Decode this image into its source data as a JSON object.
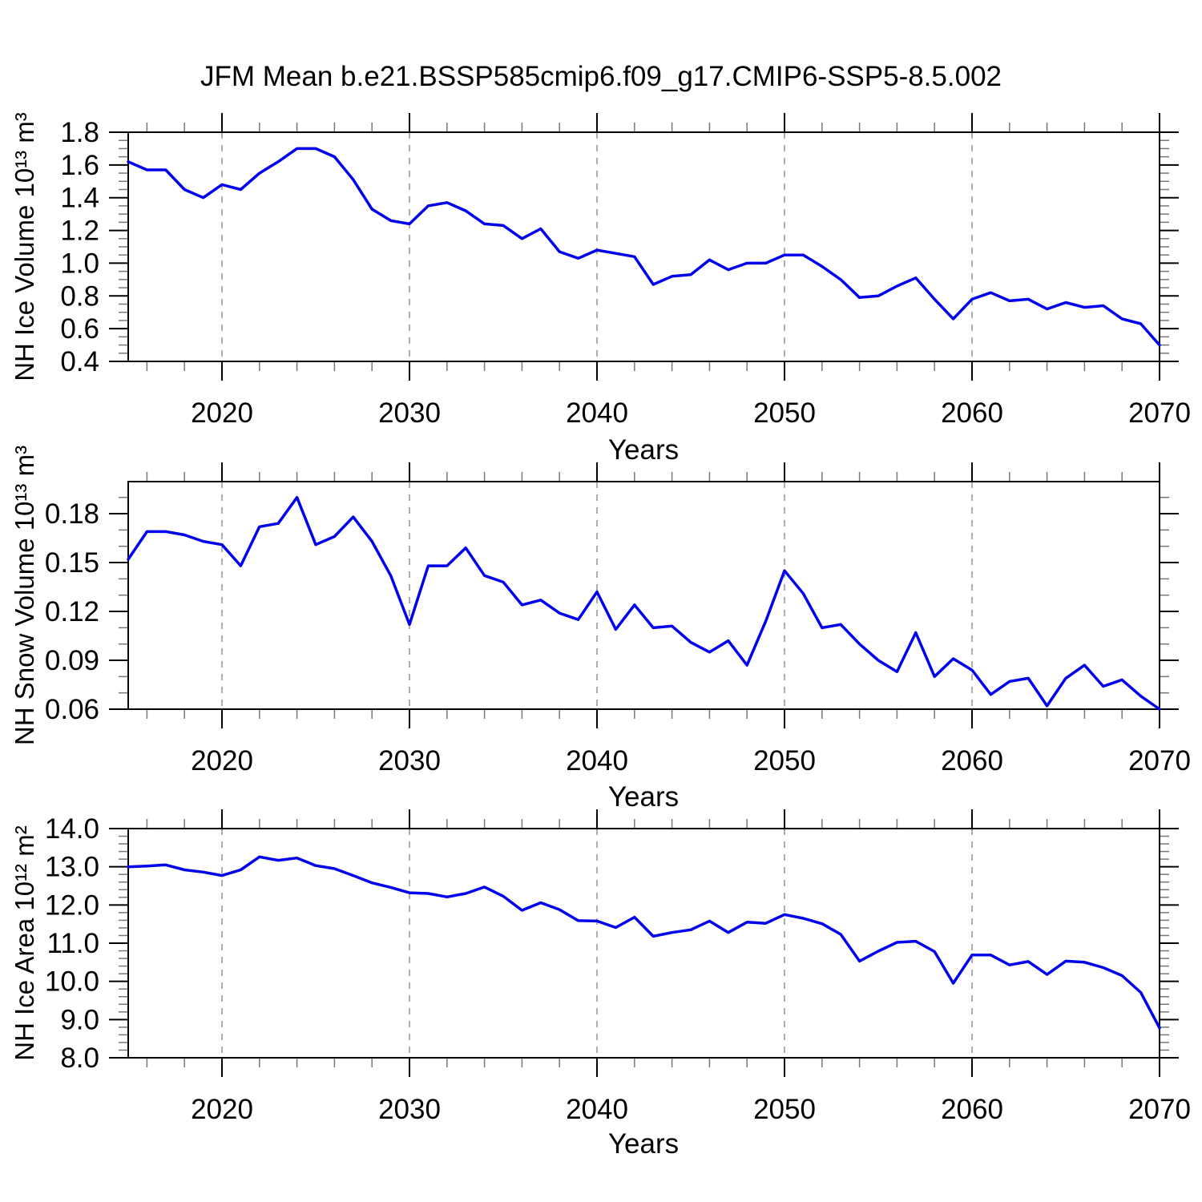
{
  "title": "JFM Mean b.e21.BSSP585cmip6.f09_g17.CMIP6-SSP5-8.5.002",
  "gridline_color": "#999999",
  "minor_tick_color": "#777777",
  "axis_color": "#000000",
  "chart_data": [
    {
      "type": "line",
      "series_name": "NH Ice Volume",
      "ylabel": "NH Ice Volume 10¹³ m³",
      "xlabel": "Years",
      "line_color": "#0000EE",
      "x_start": 2015,
      "x_step": 1,
      "values": [
        1.62,
        1.57,
        1.57,
        1.45,
        1.4,
        1.48,
        1.45,
        1.55,
        1.62,
        1.7,
        1.7,
        1.65,
        1.51,
        1.33,
        1.26,
        1.24,
        1.35,
        1.37,
        1.32,
        1.24,
        1.23,
        1.15,
        1.21,
        1.07,
        1.03,
        1.08,
        1.06,
        1.04,
        0.87,
        0.92,
        0.93,
        1.02,
        0.96,
        1.0,
        1.0,
        1.05,
        1.05,
        0.98,
        0.9,
        0.79,
        0.8,
        0.86,
        0.91,
        0.78,
        0.66,
        0.78,
        0.82,
        0.77,
        0.78,
        0.72,
        0.76,
        0.73,
        0.74,
        0.66,
        0.63,
        0.5
      ],
      "xlim": [
        2015,
        2070
      ],
      "ylim": [
        0.4,
        1.8
      ],
      "xticks": [
        2020,
        2030,
        2040,
        2050,
        2060,
        2070
      ],
      "yticks": [
        0.4,
        0.6,
        0.8,
        1.0,
        1.2,
        1.4,
        1.6,
        1.8
      ],
      "ytick_decimals": 1,
      "y_minor_step": 0.05,
      "x_minor_step": 2,
      "gridlines_x": [
        2020,
        2030,
        2040,
        2050,
        2060
      ],
      "grid": "dashed-vertical",
      "legend": "none"
    },
    {
      "type": "line",
      "series_name": "NH Snow Volume",
      "ylabel": "NH Snow Volume 10¹³ m³",
      "xlabel": "Years",
      "line_color": "#0000EE",
      "x_start": 2015,
      "x_step": 1,
      "values": [
        0.152,
        0.169,
        0.169,
        0.167,
        0.163,
        0.161,
        0.148,
        0.172,
        0.174,
        0.19,
        0.161,
        0.166,
        0.178,
        0.163,
        0.142,
        0.112,
        0.148,
        0.148,
        0.159,
        0.142,
        0.138,
        0.124,
        0.127,
        0.119,
        0.115,
        0.132,
        0.109,
        0.124,
        0.11,
        0.111,
        0.101,
        0.095,
        0.102,
        0.087,
        0.114,
        0.145,
        0.131,
        0.11,
        0.112,
        0.1,
        0.09,
        0.083,
        0.107,
        0.08,
        0.091,
        0.084,
        0.069,
        0.077,
        0.079,
        0.062,
        0.079,
        0.087,
        0.074,
        0.078,
        0.068,
        0.06
      ],
      "xlim": [
        2015,
        2070
      ],
      "ylim": [
        0.06,
        0.1997
      ],
      "xticks": [
        2020,
        2030,
        2040,
        2050,
        2060,
        2070
      ],
      "yticks": [
        0.06,
        0.09,
        0.12,
        0.15,
        0.18
      ],
      "ytick_decimals": 2,
      "y_minor_step": 0.01,
      "x_minor_step": 2,
      "gridlines_x": [
        2020,
        2030,
        2040,
        2050,
        2060
      ],
      "grid": "dashed-vertical",
      "legend": "none"
    },
    {
      "type": "line",
      "series_name": "NH Ice Area",
      "ylabel": "NH Ice Area 10¹² m²",
      "xlabel": "Years",
      "line_color": "#0000EE",
      "x_start": 2015,
      "x_step": 1,
      "values": [
        13.0,
        13.02,
        13.05,
        12.92,
        12.86,
        12.77,
        12.92,
        13.26,
        13.17,
        13.23,
        13.03,
        12.95,
        12.77,
        12.58,
        12.46,
        12.32,
        12.3,
        12.21,
        12.3,
        12.47,
        12.23,
        11.86,
        12.06,
        11.88,
        11.59,
        11.58,
        11.41,
        11.68,
        11.18,
        11.28,
        11.35,
        11.58,
        11.28,
        11.55,
        11.52,
        11.75,
        11.65,
        11.51,
        11.23,
        10.53,
        10.79,
        11.02,
        11.05,
        10.78,
        9.95,
        10.69,
        10.69,
        10.43,
        10.52,
        10.18,
        10.53,
        10.5,
        10.36,
        10.15,
        9.71,
        8.78
      ],
      "xlim": [
        2015,
        2070
      ],
      "ylim": [
        8.0,
        14.0
      ],
      "xticks": [
        2020,
        2030,
        2040,
        2050,
        2060,
        2070
      ],
      "yticks": [
        8.0,
        9.0,
        10.0,
        11.0,
        12.0,
        13.0,
        14.0
      ],
      "ytick_decimals": 1,
      "y_minor_step": 0.2,
      "x_minor_step": 2,
      "gridlines_x": [
        2020,
        2030,
        2040,
        2050,
        2060
      ],
      "grid": "dashed-vertical",
      "legend": "none"
    }
  ]
}
